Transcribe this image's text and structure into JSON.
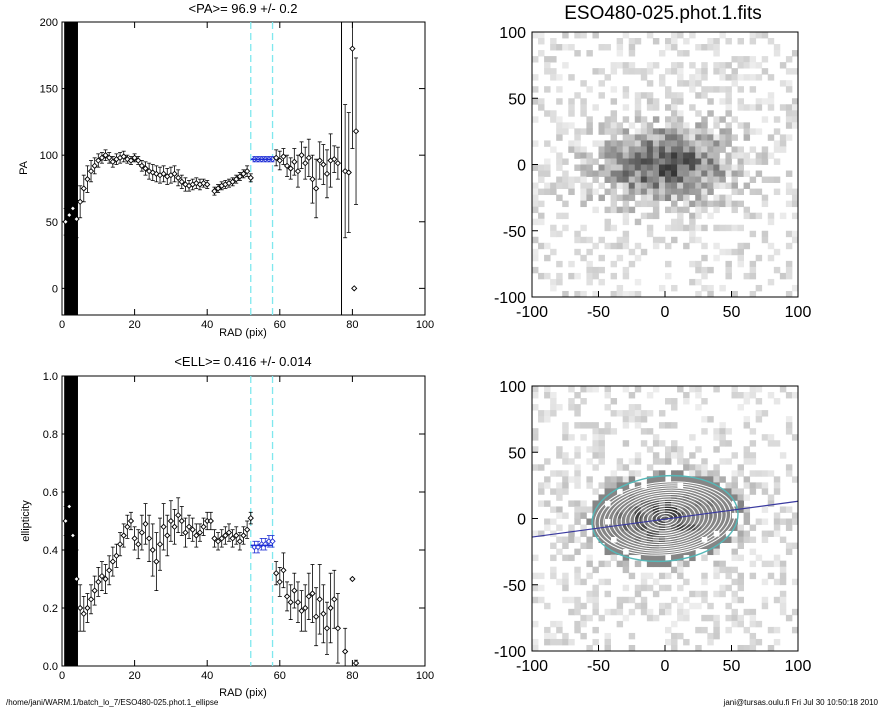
{
  "chart_data": [
    {
      "type": "scatter",
      "title": "<PA>=  96.9 +/-   0.2",
      "xlabel": "RAD (pix)",
      "ylabel": "PA",
      "xlim": [
        0,
        100
      ],
      "ylim": [
        -20,
        200
      ],
      "xticks": [
        "0",
        "20",
        "40",
        "60",
        "80",
        "100"
      ],
      "yticks": [
        "0",
        "50",
        "100",
        "150",
        "200"
      ],
      "fit_range_lines": [
        52,
        58
      ],
      "vertical_line_x": 77,
      "mean_value": 96.9,
      "grid": false,
      "points": [
        {
          "x": 1,
          "y": 50,
          "err": 10
        },
        {
          "x": 2,
          "y": 55,
          "err": 12
        },
        {
          "x": 3,
          "y": 60,
          "err": 12
        },
        {
          "x": 4,
          "y": 52,
          "err": 14
        },
        {
          "x": 5,
          "y": 65,
          "err": 12
        },
        {
          "x": 6,
          "y": 75,
          "err": 10
        },
        {
          "x": 7,
          "y": 82,
          "err": 10
        },
        {
          "x": 8,
          "y": 88,
          "err": 8
        },
        {
          "x": 9,
          "y": 92,
          "err": 6
        },
        {
          "x": 10,
          "y": 96,
          "err": 5
        },
        {
          "x": 11,
          "y": 98,
          "err": 4
        },
        {
          "x": 12,
          "y": 100,
          "err": 4
        },
        {
          "x": 13,
          "y": 98,
          "err": 4
        },
        {
          "x": 14,
          "y": 95,
          "err": 4
        },
        {
          "x": 15,
          "y": 97,
          "err": 4
        },
        {
          "x": 16,
          "y": 98,
          "err": 4
        },
        {
          "x": 17,
          "y": 99,
          "err": 4
        },
        {
          "x": 18,
          "y": 97,
          "err": 3
        },
        {
          "x": 19,
          "y": 96,
          "err": 3
        },
        {
          "x": 20,
          "y": 98,
          "err": 3
        },
        {
          "x": 21,
          "y": 96,
          "err": 3
        },
        {
          "x": 22,
          "y": 92,
          "err": 4
        },
        {
          "x": 23,
          "y": 90,
          "err": 5
        },
        {
          "x": 24,
          "y": 88,
          "err": 6
        },
        {
          "x": 25,
          "y": 87,
          "err": 6
        },
        {
          "x": 26,
          "y": 86,
          "err": 6
        },
        {
          "x": 27,
          "y": 85,
          "err": 6
        },
        {
          "x": 28,
          "y": 86,
          "err": 6
        },
        {
          "x": 29,
          "y": 84,
          "err": 6
        },
        {
          "x": 30,
          "y": 85,
          "err": 6
        },
        {
          "x": 31,
          "y": 86,
          "err": 6
        },
        {
          "x": 32,
          "y": 83,
          "err": 6
        },
        {
          "x": 33,
          "y": 80,
          "err": 5
        },
        {
          "x": 34,
          "y": 78,
          "err": 5
        },
        {
          "x": 35,
          "y": 77,
          "err": 4
        },
        {
          "x": 36,
          "y": 78,
          "err": 4
        },
        {
          "x": 37,
          "y": 79,
          "err": 4
        },
        {
          "x": 38,
          "y": 78,
          "err": 4
        },
        {
          "x": 39,
          "y": 79,
          "err": 3
        },
        {
          "x": 40,
          "y": 78,
          "err": 3
        },
        {
          "x": 42,
          "y": 73,
          "err": 3
        },
        {
          "x": 43,
          "y": 75,
          "err": 3
        },
        {
          "x": 44,
          "y": 77,
          "err": 3
        },
        {
          "x": 45,
          "y": 78,
          "err": 3
        },
        {
          "x": 46,
          "y": 79,
          "err": 3
        },
        {
          "x": 47,
          "y": 80,
          "err": 3
        },
        {
          "x": 48,
          "y": 82,
          "err": 3
        },
        {
          "x": 49,
          "y": 84,
          "err": 3
        },
        {
          "x": 50,
          "y": 86,
          "err": 3
        },
        {
          "x": 51,
          "y": 88,
          "err": 4
        },
        {
          "x": 52,
          "y": 83,
          "err": 3
        },
        {
          "x": 53,
          "y": 97,
          "err": 2
        },
        {
          "x": 54,
          "y": 97,
          "err": 2
        },
        {
          "x": 55,
          "y": 97,
          "err": 2
        },
        {
          "x": 56,
          "y": 97,
          "err": 2
        },
        {
          "x": 57,
          "y": 97,
          "err": 2
        },
        {
          "x": 58,
          "y": 97,
          "err": 2
        },
        {
          "x": 59,
          "y": 98,
          "err": 6
        },
        {
          "x": 60,
          "y": 96,
          "err": 7
        },
        {
          "x": 61,
          "y": 99,
          "err": 6
        },
        {
          "x": 62,
          "y": 92,
          "err": 8
        },
        {
          "x": 63,
          "y": 90,
          "err": 8
        },
        {
          "x": 64,
          "y": 95,
          "err": 10
        },
        {
          "x": 65,
          "y": 88,
          "err": 12
        },
        {
          "x": 66,
          "y": 100,
          "err": 10
        },
        {
          "x": 67,
          "y": 94,
          "err": 12
        },
        {
          "x": 68,
          "y": 98,
          "err": 14
        },
        {
          "x": 69,
          "y": 82,
          "err": 18
        },
        {
          "x": 70,
          "y": 75,
          "err": 22
        },
        {
          "x": 71,
          "y": 96,
          "err": 14
        },
        {
          "x": 72,
          "y": 93,
          "err": 15
        },
        {
          "x": 73,
          "y": 86,
          "err": 18
        },
        {
          "x": 74,
          "y": 96,
          "err": 20
        },
        {
          "x": 75,
          "y": 97,
          "err": 10
        },
        {
          "x": 76,
          "y": 94,
          "err": 12
        },
        {
          "x": 78,
          "y": 88,
          "err": 50
        },
        {
          "x": 79,
          "y": 87,
          "err": 45
        },
        {
          "x": 80,
          "y": 180,
          "err": 75
        },
        {
          "x": 80.5,
          "y": 0,
          "err": 0
        },
        {
          "x": 81,
          "y": 118,
          "err": 55
        }
      ]
    },
    {
      "type": "scatter",
      "title": "<ELL>= 0.416 +/-  0.014",
      "xlabel": "RAD (pix)",
      "ylabel": "ellipticity",
      "xlim": [
        0,
        100
      ],
      "ylim": [
        0,
        1
      ],
      "xticks": [
        "0",
        "20",
        "40",
        "60",
        "80",
        "100"
      ],
      "yticks": [
        "0.0",
        "0.2",
        "0.4",
        "0.6",
        "0.8",
        "1.0"
      ],
      "fit_range_lines": [
        52,
        58
      ],
      "mean_value": 0.416,
      "grid": false,
      "points": [
        {
          "x": 1,
          "y": 0.5,
          "err": 0.05
        },
        {
          "x": 2,
          "y": 0.55,
          "err": 0.06
        },
        {
          "x": 3,
          "y": 0.45,
          "err": 0.08
        },
        {
          "x": 4,
          "y": 0.3,
          "err": 0.1
        },
        {
          "x": 5,
          "y": 0.2,
          "err": 0.08
        },
        {
          "x": 6,
          "y": 0.18,
          "err": 0.06
        },
        {
          "x": 7,
          "y": 0.2,
          "err": 0.05
        },
        {
          "x": 8,
          "y": 0.23,
          "err": 0.05
        },
        {
          "x": 9,
          "y": 0.26,
          "err": 0.05
        },
        {
          "x": 10,
          "y": 0.29,
          "err": 0.05
        },
        {
          "x": 11,
          "y": 0.31,
          "err": 0.05
        },
        {
          "x": 12,
          "y": 0.3,
          "err": 0.05
        },
        {
          "x": 13,
          "y": 0.33,
          "err": 0.05
        },
        {
          "x": 14,
          "y": 0.36,
          "err": 0.05
        },
        {
          "x": 15,
          "y": 0.38,
          "err": 0.04
        },
        {
          "x": 16,
          "y": 0.42,
          "err": 0.04
        },
        {
          "x": 17,
          "y": 0.45,
          "err": 0.04
        },
        {
          "x": 18,
          "y": 0.48,
          "err": 0.04
        },
        {
          "x": 19,
          "y": 0.5,
          "err": 0.03
        },
        {
          "x": 20,
          "y": 0.44,
          "err": 0.04
        },
        {
          "x": 21,
          "y": 0.42,
          "err": 0.05
        },
        {
          "x": 22,
          "y": 0.46,
          "err": 0.06
        },
        {
          "x": 23,
          "y": 0.49,
          "err": 0.07
        },
        {
          "x": 24,
          "y": 0.44,
          "err": 0.08
        },
        {
          "x": 25,
          "y": 0.4,
          "err": 0.09
        },
        {
          "x": 26,
          "y": 0.36,
          "err": 0.1
        },
        {
          "x": 27,
          "y": 0.42,
          "err": 0.09
        },
        {
          "x": 28,
          "y": 0.48,
          "err": 0.08
        },
        {
          "x": 29,
          "y": 0.45,
          "err": 0.07
        },
        {
          "x": 30,
          "y": 0.5,
          "err": 0.07
        },
        {
          "x": 31,
          "y": 0.48,
          "err": 0.06
        },
        {
          "x": 32,
          "y": 0.52,
          "err": 0.06
        },
        {
          "x": 33,
          "y": 0.5,
          "err": 0.05
        },
        {
          "x": 34,
          "y": 0.46,
          "err": 0.05
        },
        {
          "x": 35,
          "y": 0.48,
          "err": 0.04
        },
        {
          "x": 36,
          "y": 0.47,
          "err": 0.04
        },
        {
          "x": 37,
          "y": 0.45,
          "err": 0.04
        },
        {
          "x": 38,
          "y": 0.46,
          "err": 0.03
        },
        {
          "x": 39,
          "y": 0.48,
          "err": 0.03
        },
        {
          "x": 40,
          "y": 0.5,
          "err": 0.03
        },
        {
          "x": 41,
          "y": 0.5,
          "err": 0.03
        },
        {
          "x": 42,
          "y": 0.44,
          "err": 0.03
        },
        {
          "x": 43,
          "y": 0.43,
          "err": 0.03
        },
        {
          "x": 44,
          "y": 0.44,
          "err": 0.03
        },
        {
          "x": 45,
          "y": 0.45,
          "err": 0.03
        },
        {
          "x": 46,
          "y": 0.46,
          "err": 0.03
        },
        {
          "x": 47,
          "y": 0.44,
          "err": 0.03
        },
        {
          "x": 48,
          "y": 0.45,
          "err": 0.03
        },
        {
          "x": 49,
          "y": 0.43,
          "err": 0.03
        },
        {
          "x": 50,
          "y": 0.45,
          "err": 0.03
        },
        {
          "x": 51,
          "y": 0.47,
          "err": 0.03
        },
        {
          "x": 52,
          "y": 0.51,
          "err": 0.02
        },
        {
          "x": 53,
          "y": 0.41,
          "err": 0.02
        },
        {
          "x": 54,
          "y": 0.41,
          "err": 0.02
        },
        {
          "x": 55,
          "y": 0.42,
          "err": 0.02
        },
        {
          "x": 56,
          "y": 0.42,
          "err": 0.02
        },
        {
          "x": 57,
          "y": 0.43,
          "err": 0.02
        },
        {
          "x": 58,
          "y": 0.43,
          "err": 0.02
        },
        {
          "x": 59,
          "y": 0.32,
          "err": 0.04
        },
        {
          "x": 60,
          "y": 0.29,
          "err": 0.05
        },
        {
          "x": 61,
          "y": 0.33,
          "err": 0.06
        },
        {
          "x": 62,
          "y": 0.24,
          "err": 0.05
        },
        {
          "x": 63,
          "y": 0.22,
          "err": 0.06
        },
        {
          "x": 64,
          "y": 0.26,
          "err": 0.06
        },
        {
          "x": 65,
          "y": 0.22,
          "err": 0.07
        },
        {
          "x": 66,
          "y": 0.19,
          "err": 0.07
        },
        {
          "x": 67,
          "y": 0.2,
          "err": 0.08
        },
        {
          "x": 68,
          "y": 0.24,
          "err": 0.08
        },
        {
          "x": 69,
          "y": 0.25,
          "err": 0.1
        },
        {
          "x": 70,
          "y": 0.17,
          "err": 0.1
        },
        {
          "x": 71,
          "y": 0.23,
          "err": 0.12
        },
        {
          "x": 72,
          "y": 0.18,
          "err": 0.1
        },
        {
          "x": 73,
          "y": 0.13,
          "err": 0.09
        },
        {
          "x": 74,
          "y": 0.2,
          "err": 0.12
        },
        {
          "x": 75,
          "y": 0.23,
          "err": 0.1
        },
        {
          "x": 76,
          "y": 0.13,
          "err": 0.12
        },
        {
          "x": 78,
          "y": 0.05,
          "err": 0.08
        },
        {
          "x": 80,
          "y": 0.3,
          "err": 0.0
        },
        {
          "x": 81,
          "y": 0.01,
          "err": 0.01
        }
      ]
    },
    {
      "type": "heatmap",
      "title": "ESO480-025.phot.1.fits",
      "xlim": [
        -100,
        100
      ],
      "ylim": [
        -100,
        100
      ],
      "xticks": [
        "-100",
        "-50",
        "0",
        "50",
        "100"
      ],
      "yticks": [
        "-100",
        "-50",
        "0",
        "50",
        "100"
      ]
    },
    {
      "type": "heatmap",
      "title": "",
      "xlim": [
        -100,
        100
      ],
      "ylim": [
        -100,
        100
      ],
      "xticks": [
        "-100",
        "-50",
        "0",
        "50",
        "100"
      ],
      "yticks": [
        "-100",
        "-50",
        "0",
        "50",
        "100"
      ],
      "overlay": "isophote ellipses with major-axis line"
    }
  ],
  "footer": {
    "left": "/home/jani/WARM.1/batch_lo_7/ESO480-025.phot.1_ellipse",
    "right": "jani@tursas.oulu.fi  Fri Jul 30 10:50:18 2010"
  },
  "colors": {
    "marker": "#000000",
    "fit_points": "#1f2fd6",
    "range_lines": "#7fe8ee",
    "ellipse": "#55b8b8",
    "axis_line": "#3a3aa0"
  }
}
